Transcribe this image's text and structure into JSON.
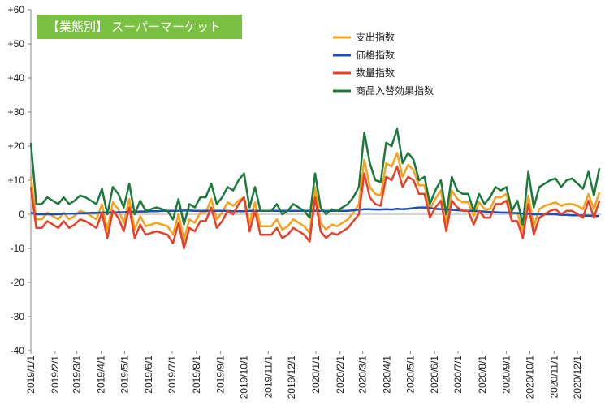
{
  "chart_data": {
    "type": "line",
    "title": "【業態別】 スーパーマーケット",
    "x": [
      "2019/1/1",
      "2019/1/8",
      "2019/1/15",
      "2019/1/22",
      "2019/1/29",
      "2019/2/5",
      "2019/2/12",
      "2019/2/19",
      "2019/2/26",
      "2019/3/5",
      "2019/3/12",
      "2019/3/19",
      "2019/3/26",
      "2019/4/2",
      "2019/4/9",
      "2019/4/16",
      "2019/4/23",
      "2019/4/30",
      "2019/5/7",
      "2019/5/14",
      "2019/5/21",
      "2019/5/28",
      "2019/6/4",
      "2019/6/11",
      "2019/6/18",
      "2019/6/25",
      "2019/7/2",
      "2019/7/9",
      "2019/7/16",
      "2019/7/23",
      "2019/7/30",
      "2019/8/6",
      "2019/8/13",
      "2019/8/20",
      "2019/8/27",
      "2019/9/3",
      "2019/9/10",
      "2019/9/17",
      "2019/9/24",
      "2019/10/1",
      "2019/10/8",
      "2019/10/15",
      "2019/10/22",
      "2019/10/29",
      "2019/11/5",
      "2019/11/12",
      "2019/11/19",
      "2019/11/26",
      "2019/12/3",
      "2019/12/10",
      "2019/12/17",
      "2019/12/24",
      "2019/12/31",
      "2020/1/7",
      "2020/1/14",
      "2020/1/21",
      "2020/1/28",
      "2020/2/4",
      "2020/2/11",
      "2020/2/18",
      "2020/2/25",
      "2020/3/3",
      "2020/3/10",
      "2020/3/17",
      "2020/3/24",
      "2020/3/31",
      "2020/4/7",
      "2020/4/14",
      "2020/4/21",
      "2020/4/28",
      "2020/5/5",
      "2020/5/12",
      "2020/5/19",
      "2020/5/26",
      "2020/6/2",
      "2020/6/9",
      "2020/6/16",
      "2020/6/23",
      "2020/6/30",
      "2020/7/7",
      "2020/7/14",
      "2020/7/21",
      "2020/7/28",
      "2020/8/4",
      "2020/8/11",
      "2020/8/18",
      "2020/8/25",
      "2020/9/1",
      "2020/9/8",
      "2020/9/15",
      "2020/9/22",
      "2020/9/29",
      "2020/10/6",
      "2020/10/13",
      "2020/10/20",
      "2020/10/27",
      "2020/11/3",
      "2020/11/10",
      "2020/11/17",
      "2020/11/24",
      "2020/12/1",
      "2020/12/8",
      "2020/12/15",
      "2020/12/22",
      "2020/12/29"
    ],
    "xlim": [
      "2019/1/1",
      "2020/12/31"
    ],
    "xticks": [
      "2019/1/1",
      "2019/2/1",
      "2019/3/1",
      "2019/4/1",
      "2019/5/1",
      "2019/6/1",
      "2019/7/1",
      "2019/8/1",
      "2019/9/1",
      "2019/10/1",
      "2019/11/1",
      "2019/12/1",
      "2020/1/1",
      "2020/2/1",
      "2020/3/1",
      "2020/4/1",
      "2020/5/1",
      "2020/6/1",
      "2020/7/1",
      "2020/8/1",
      "2020/9/1",
      "2020/10/1",
      "2020/11/1",
      "2020/12/1"
    ],
    "ylim": [
      -40,
      60
    ],
    "yticks": [
      {
        "value": 60,
        "label": "+60"
      },
      {
        "value": 50,
        "label": "+50"
      },
      {
        "value": 40,
        "label": "+40"
      },
      {
        "value": 30,
        "label": "+30"
      },
      {
        "value": 20,
        "label": "+20"
      },
      {
        "value": 10,
        "label": "+10"
      },
      0,
      -10,
      -20,
      -30,
      -40
    ],
    "grid": false,
    "series": [
      {
        "name": "支出指数",
        "color": "#f7a21b",
        "values": [
          11,
          -1.5,
          -1.5,
          0.5,
          -0.5,
          -1.5,
          0.5,
          -1.5,
          -0.5,
          1,
          0.5,
          -0.5,
          -1.5,
          3,
          -4.5,
          3.5,
          1.5,
          -2.5,
          4.5,
          -4.5,
          -0.5,
          -3.5,
          -3,
          -2.5,
          -3,
          -3.5,
          -6,
          0,
          -7.5,
          -1.5,
          -2.5,
          0.5,
          0.5,
          4.5,
          -1.5,
          0.5,
          3.5,
          2.5,
          4,
          5,
          -2.5,
          3.5,
          -3.5,
          -3.5,
          -3.5,
          -1.5,
          -4.5,
          -3.5,
          -1.5,
          -2.5,
          -3.5,
          -5.5,
          8,
          -2.5,
          -4.5,
          -3,
          -3.5,
          -2.5,
          -1.5,
          0.5,
          3,
          16,
          8,
          6,
          5.5,
          15,
          14,
          18,
          11,
          14.5,
          13,
          8.5,
          8.5,
          1.5,
          4.5,
          7,
          -2.5,
          7,
          4.5,
          3.5,
          3.5,
          -0.5,
          3.5,
          1.5,
          1.5,
          5,
          5,
          6,
          0,
          0.5,
          -5,
          5.5,
          -3.5,
          1.5,
          2.5,
          3,
          3.5,
          2.5,
          3,
          3,
          2.5,
          1.5,
          6,
          1.5,
          6.5
        ]
      },
      {
        "name": "価格指数",
        "color": "#1f4fb4",
        "values": [
          0.5,
          0,
          0,
          0,
          0,
          0,
          0.2,
          0.2,
          0.2,
          0.3,
          0.3,
          0.4,
          0.4,
          0.5,
          0.5,
          0.5,
          0.6,
          0.6,
          0.7,
          0.7,
          0.8,
          0.8,
          0.9,
          0.9,
          1,
          1,
          1,
          1,
          1.1,
          1.1,
          1,
          1,
          1,
          1,
          1,
          1,
          1,
          0.9,
          0.9,
          0.9,
          1,
          1,
          1,
          1,
          1,
          1,
          1,
          1,
          1,
          1,
          1,
          1,
          1,
          1,
          1,
          1,
          1,
          1,
          1,
          1.2,
          1.3,
          1.5,
          1.5,
          1.4,
          1.4,
          1.5,
          1.4,
          1.6,
          1.5,
          1.6,
          1.8,
          2,
          2,
          1.8,
          1.6,
          1.5,
          1.4,
          1.3,
          1.2,
          1.1,
          1,
          1,
          0.9,
          0.8,
          0.7,
          0.6,
          0.5,
          0.5,
          0.4,
          0.3,
          0.2,
          0.1,
          0,
          0,
          0,
          0,
          0,
          -0.2,
          -0.2,
          -0.3,
          -0.3,
          -0.4,
          -0.4,
          -0.5,
          -0.5
        ]
      },
      {
        "name": "数量指数",
        "color": "#e8412b",
        "values": [
          8,
          -4,
          -4,
          -2,
          -3,
          -4,
          -2,
          -4,
          -3,
          -1.5,
          -2,
          -3,
          -4,
          0.5,
          -7,
          1,
          -1,
          -5,
          2,
          -7,
          -3,
          -6,
          -5.5,
          -5,
          -5.5,
          -6,
          -8.5,
          -2.5,
          -10,
          -4,
          -5,
          -2,
          -2,
          2,
          -4,
          -2,
          1,
          0,
          3,
          5,
          -5,
          1,
          -6,
          -6,
          -6,
          -4,
          -7,
          -6,
          -4,
          -5,
          -6,
          -8,
          5,
          -5,
          -7,
          -5.5,
          -6,
          -5,
          -4,
          -2,
          0,
          12,
          5,
          3,
          2.5,
          11,
          10,
          14,
          8,
          11,
          10,
          6,
          6,
          -1,
          2,
          4,
          -5,
          4,
          2,
          1,
          1,
          -3,
          1,
          -1,
          -1,
          3,
          3,
          4,
          -2,
          -2,
          -7,
          3,
          -6,
          -1,
          0,
          1,
          1.5,
          0,
          1,
          1,
          0,
          -1,
          4,
          -1,
          4
        ]
      },
      {
        "name": "商品入替効果指数",
        "color": "#1b7a3c",
        "values": [
          21,
          3,
          3,
          5,
          4,
          3,
          5,
          3,
          4,
          5.5,
          5,
          4,
          3,
          7.5,
          0,
          8,
          6,
          2,
          9,
          0,
          4,
          1,
          1.5,
          2,
          1.5,
          1,
          -1.5,
          4.5,
          -3,
          3,
          2,
          5,
          5,
          9,
          3,
          5,
          8,
          7,
          10,
          12,
          2,
          8,
          1,
          1,
          1,
          3,
          0,
          1,
          3,
          2,
          1,
          -1,
          12,
          2,
          0,
          1.5,
          1,
          2,
          3,
          5,
          8,
          24,
          15,
          10,
          9.5,
          21,
          20,
          25,
          15,
          18,
          16,
          10,
          11,
          3,
          7,
          10,
          0,
          11,
          7,
          6,
          6,
          1,
          6,
          3,
          5,
          8,
          7,
          8,
          1,
          4,
          -3,
          12.5,
          2,
          8,
          9,
          10,
          10.5,
          8,
          10,
          10.5,
          9,
          7.5,
          12.5,
          5.5,
          13.5
        ]
      }
    ]
  }
}
